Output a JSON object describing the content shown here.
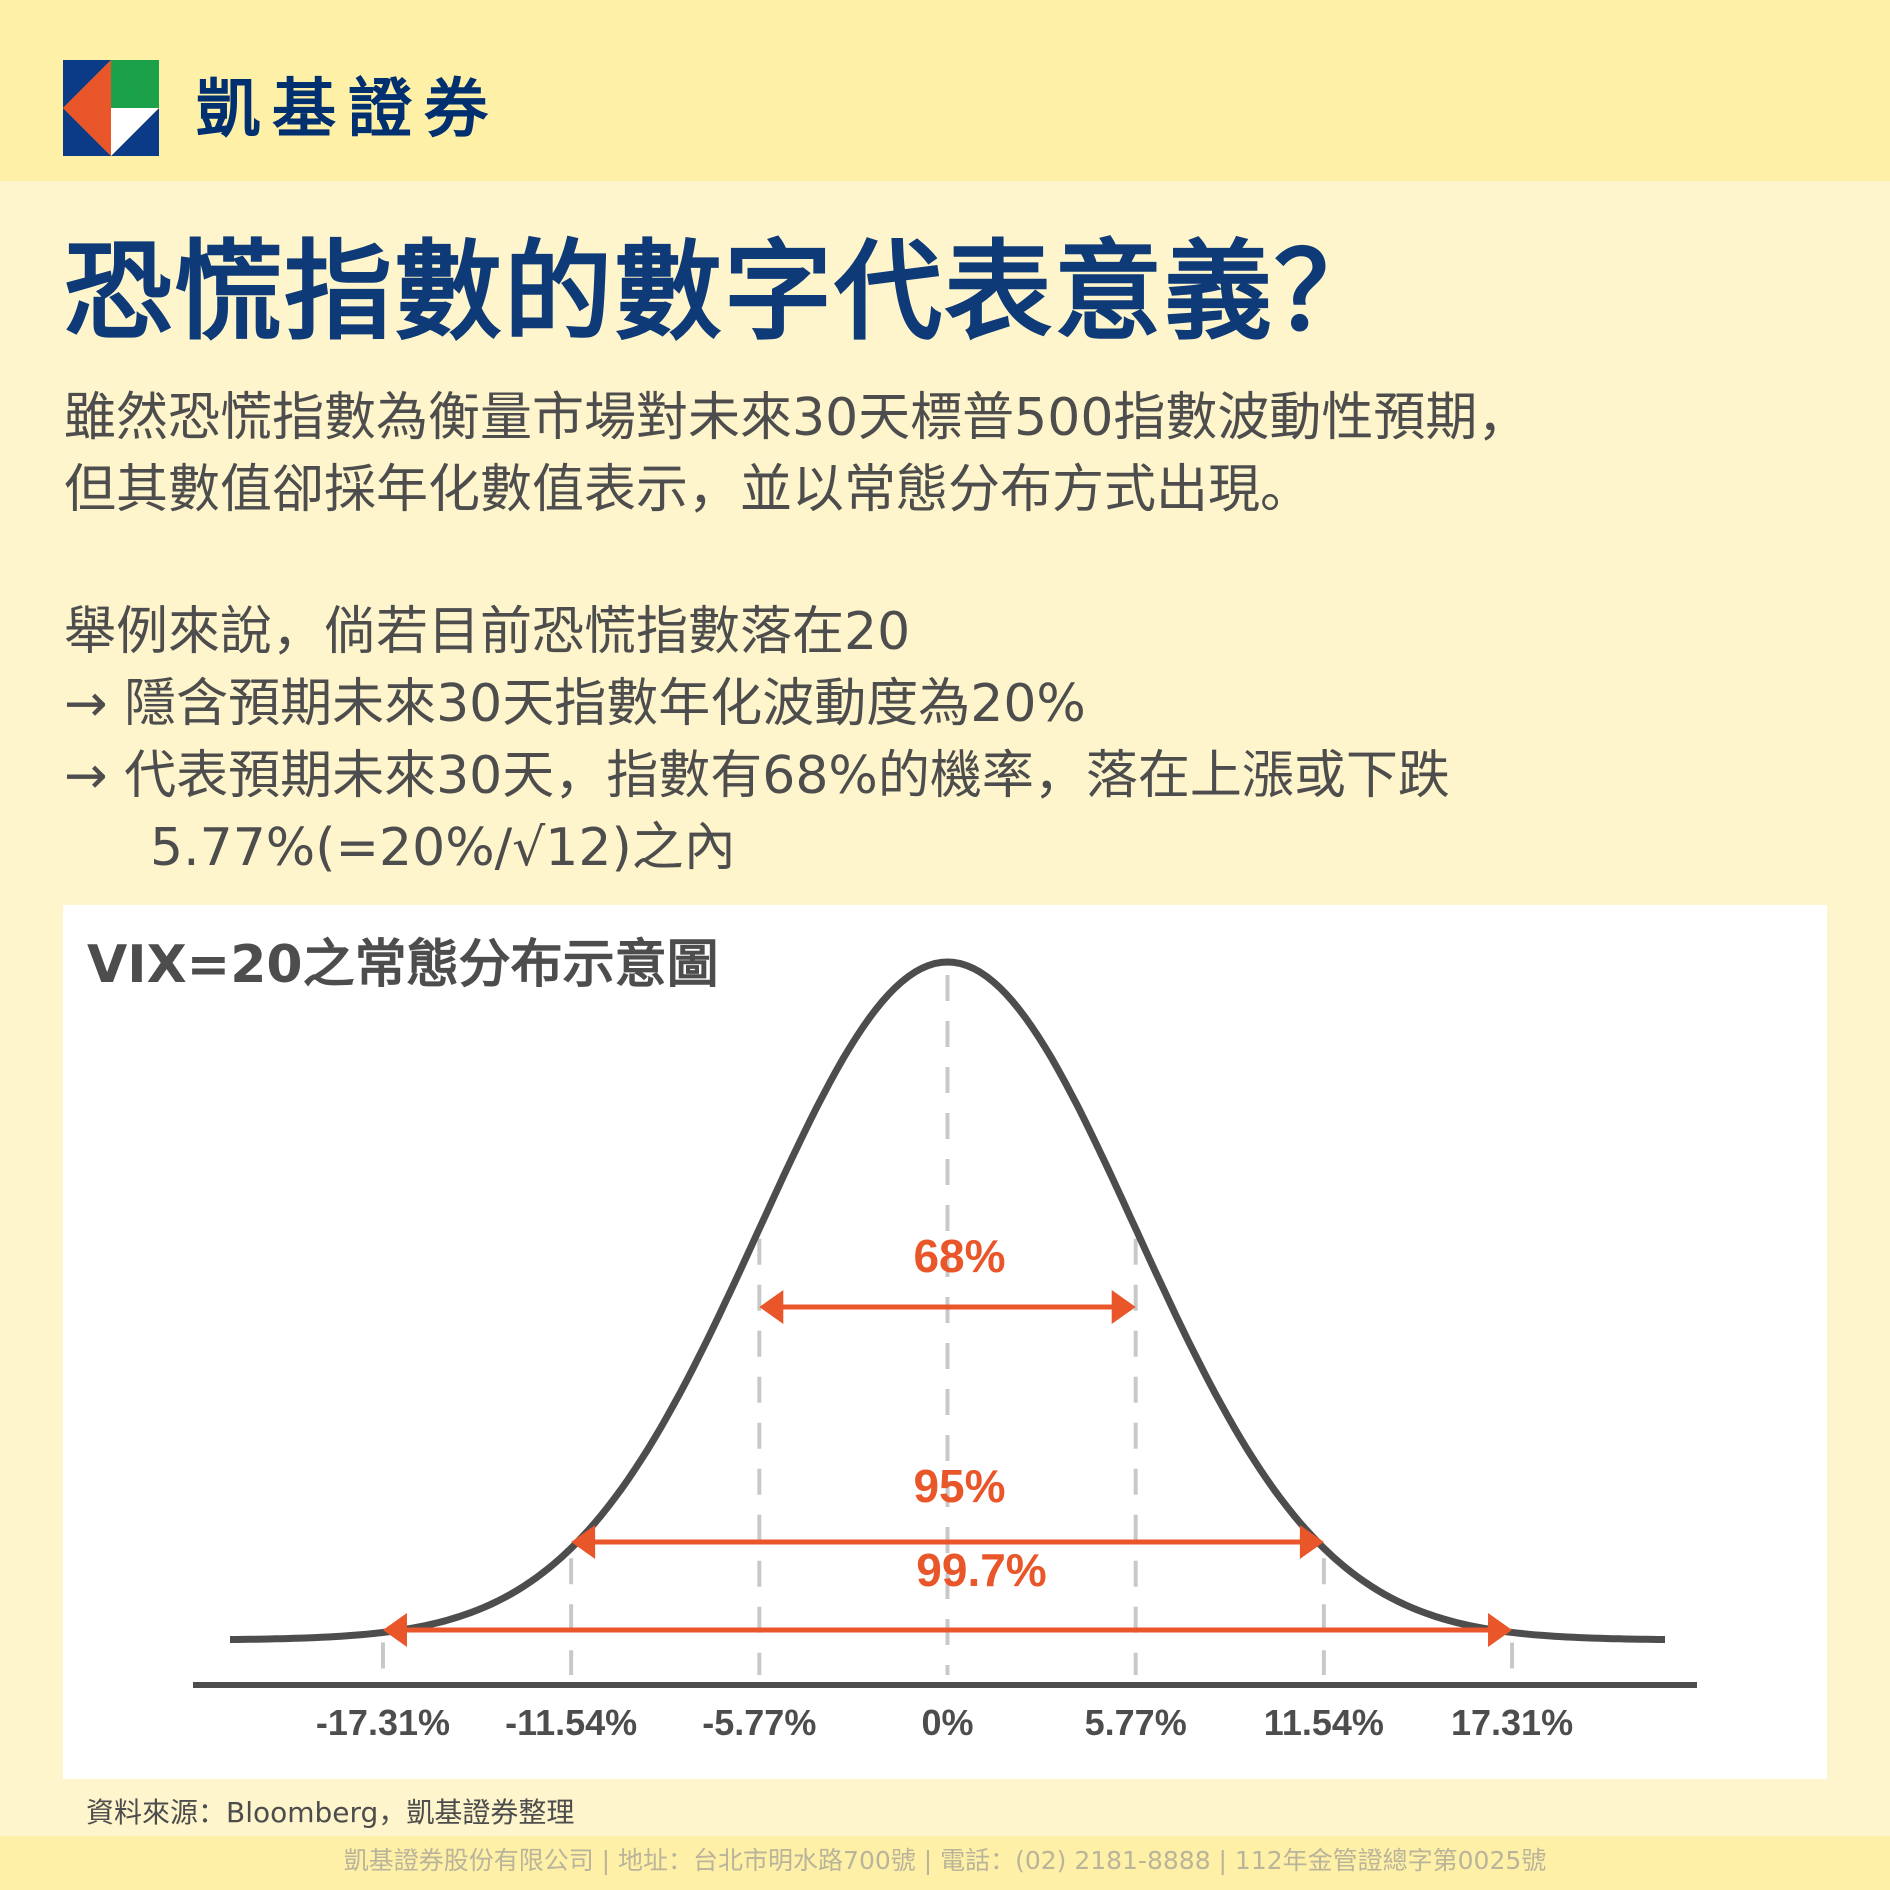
{
  "brand": {
    "name": "凱基證券"
  },
  "title": "恐慌指數的數字代表意義？",
  "intro": {
    "line1": "雖然恐慌指數為衡量市場對未來30天標普500指數波動性預期，",
    "line2": "但其數值卻採年化數值表示，並以常態分布方式出現。"
  },
  "example": {
    "line1": "舉例來說，倘若目前恐慌指數落在20",
    "line2": "→ 隱含預期未來30天指數年化波動度為20%",
    "line3": "→ 代表預期未來30天，指數有68%的機率，落在上漲或下跌",
    "line4": "5.77%(=20%/√12)之內"
  },
  "colors": {
    "brand_blue": "#0e3b78",
    "accent_orange": "#e8562a",
    "curve": "#4d4d4d",
    "background": "#fef5cc",
    "header_band": "#fff0a8"
  },
  "chart_data": {
    "type": "area",
    "title": "VIX=20之常態分布示意圖",
    "distribution": "normal",
    "mean": 0,
    "sigma": 5.77,
    "x_range": [
      -22,
      22
    ],
    "x_ticks": [
      {
        "value": -17.31,
        "label": "-17.31%"
      },
      {
        "value": -11.54,
        "label": "-11.54%"
      },
      {
        "value": -5.77,
        "label": "-5.77%"
      },
      {
        "value": 0,
        "label": "0%"
      },
      {
        "value": 5.77,
        "label": "5.77%"
      },
      {
        "value": 11.54,
        "label": "11.54%"
      },
      {
        "value": 17.31,
        "label": "17.31%"
      }
    ],
    "intervals": [
      {
        "label": "68%",
        "from": -5.77,
        "to": 5.77
      },
      {
        "label": "95%",
        "from": -11.54,
        "to": 11.54
      },
      {
        "label": "99.7%",
        "from": -17.31,
        "to": 17.31
      }
    ]
  },
  "source": "資料來源：Bloomberg，凱基證券整理",
  "footer": "凱基證券股份有限公司 | 地址：台北市明水路700號 | 電話：(02) 2181-8888 | 112年金管證總字第0025號"
}
